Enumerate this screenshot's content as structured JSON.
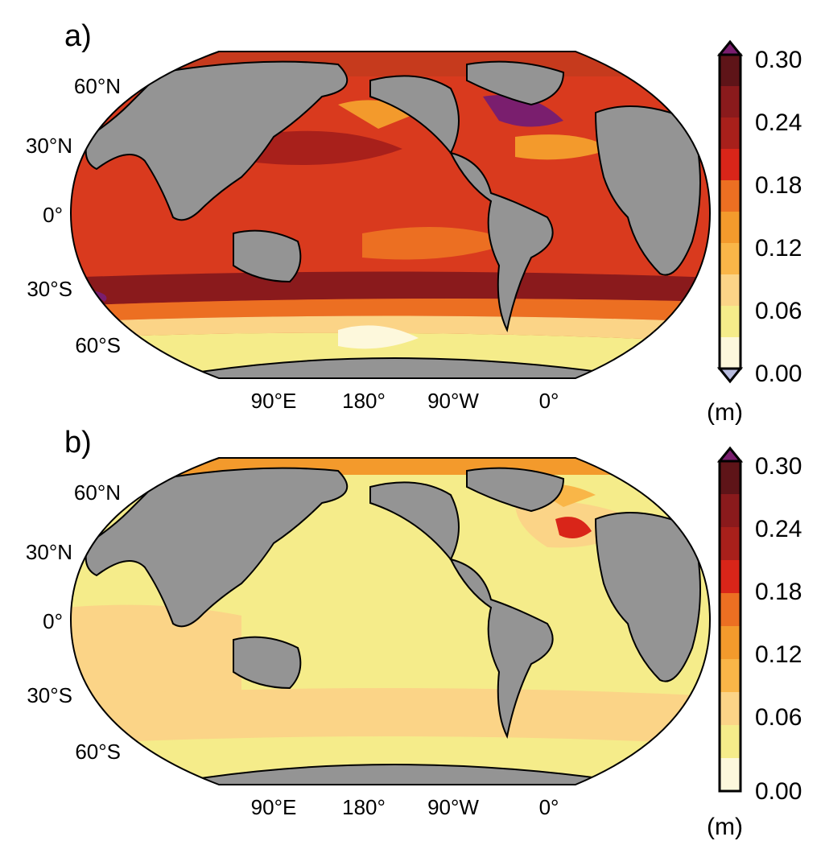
{
  "panels": [
    {
      "label": "a)",
      "lat_labels": [
        "60°N",
        "30°N",
        "0°",
        "30°S",
        "60°S"
      ],
      "lon_labels": [
        "90°E",
        "180°",
        "90°W",
        "0°"
      ],
      "colorbar": {
        "ticks": [
          "0.30",
          "0.24",
          "0.18",
          "0.12",
          "0.06",
          "0.00"
        ],
        "unit": "(m)",
        "extend_low_color": "#b8bcde",
        "extend_high_color": "#7a1e6e"
      },
      "background_color": "#d93a1e"
    },
    {
      "label": "b)",
      "lat_labels": [
        "60°N",
        "30°N",
        "0°",
        "30°S",
        "60°S"
      ],
      "lon_labels": [
        "90°E",
        "180°",
        "90°W",
        "0°"
      ],
      "colorbar": {
        "ticks": [
          "0.30",
          "0.24",
          "0.18",
          "0.12",
          "0.06",
          "0.00"
        ],
        "unit": "(m)",
        "extend_high_color": "#7a1e6e"
      },
      "background_color": "#f5ec8a"
    }
  ],
  "colormap": [
    "#fdf8dc",
    "#f5ec8a",
    "#fbd487",
    "#f9b648",
    "#f39a2c",
    "#ec6f22",
    "#d92519",
    "#a8201b",
    "#8a1a1c",
    "#5e1418"
  ],
  "land_color": "#949494"
}
